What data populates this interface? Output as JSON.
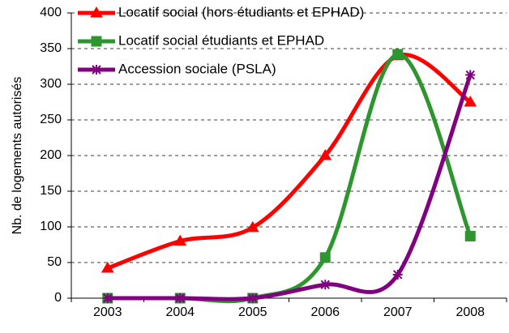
{
  "chart_data": {
    "type": "line",
    "y_label": "Nb. de logements autorisés",
    "categories": [
      "2003",
      "2004",
      "2005",
      "2006",
      "2007",
      "2008"
    ],
    "series": [
      {
        "name": "Locatif social (hors étudiants et EPHAD)",
        "color": "#ff0000",
        "marker": "triangle",
        "values": [
          42,
          80,
          99,
          200,
          340,
          275
        ]
      },
      {
        "name": "Locatif social étudiants et EPHAD",
        "color": "#2e962e",
        "marker": "square",
        "values": [
          0,
          0,
          0,
          57,
          342,
          87
        ]
      },
      {
        "name": "Accession sociale (PSLA)",
        "color": "#800080",
        "marker": "star",
        "values": [
          0,
          0,
          0,
          19,
          33,
          313
        ]
      }
    ],
    "ylim": [
      0,
      400
    ],
    "yticks": [
      0,
      50,
      100,
      150,
      200,
      250,
      300,
      350,
      400
    ],
    "grid": true,
    "smooth": true,
    "legend": "top-left"
  }
}
